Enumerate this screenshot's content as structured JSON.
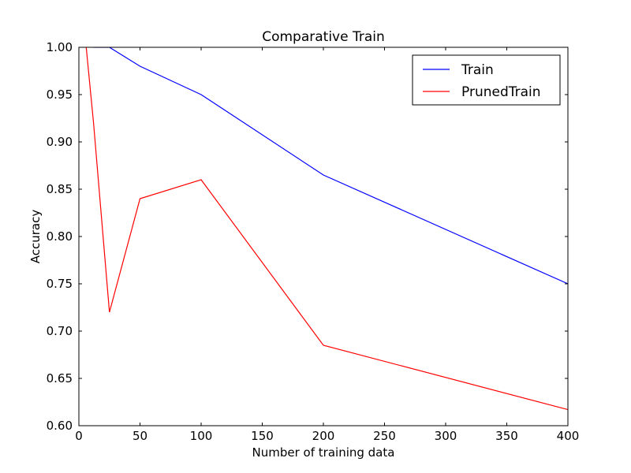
{
  "chart_data": {
    "type": "line",
    "title": "Comparative Train",
    "xlabel": "Number of training data",
    "ylabel": "Accuracy",
    "xlim": [
      0,
      400
    ],
    "ylim": [
      0.6,
      1.0
    ],
    "xticks": [
      0,
      50,
      100,
      150,
      200,
      250,
      300,
      350,
      400
    ],
    "xtick_labels": [
      "0",
      "50",
      "100",
      "150",
      "200",
      "250",
      "300",
      "350",
      "400"
    ],
    "yticks": [
      0.6,
      0.65,
      0.7,
      0.75,
      0.8,
      0.85,
      0.9,
      0.95,
      1.0
    ],
    "ytick_labels": [
      "0.60",
      "0.65",
      "0.70",
      "0.75",
      "0.80",
      "0.85",
      "0.90",
      "0.95",
      "1.00"
    ],
    "grid": false,
    "legend_position": "top-right",
    "series": [
      {
        "name": "Train",
        "color": "#0000ff",
        "x": [
          12,
          25,
          50,
          100,
          200,
          400
        ],
        "y": [
          1.0,
          1.0,
          0.98,
          0.95,
          0.865,
          0.75
        ]
      },
      {
        "name": "PrunedTrain",
        "color": "#ff0000",
        "x": [
          6,
          12,
          25,
          50,
          100,
          200,
          400
        ],
        "y": [
          1.0,
          0.92,
          0.72,
          0.84,
          0.86,
          0.685,
          0.617
        ]
      }
    ]
  }
}
